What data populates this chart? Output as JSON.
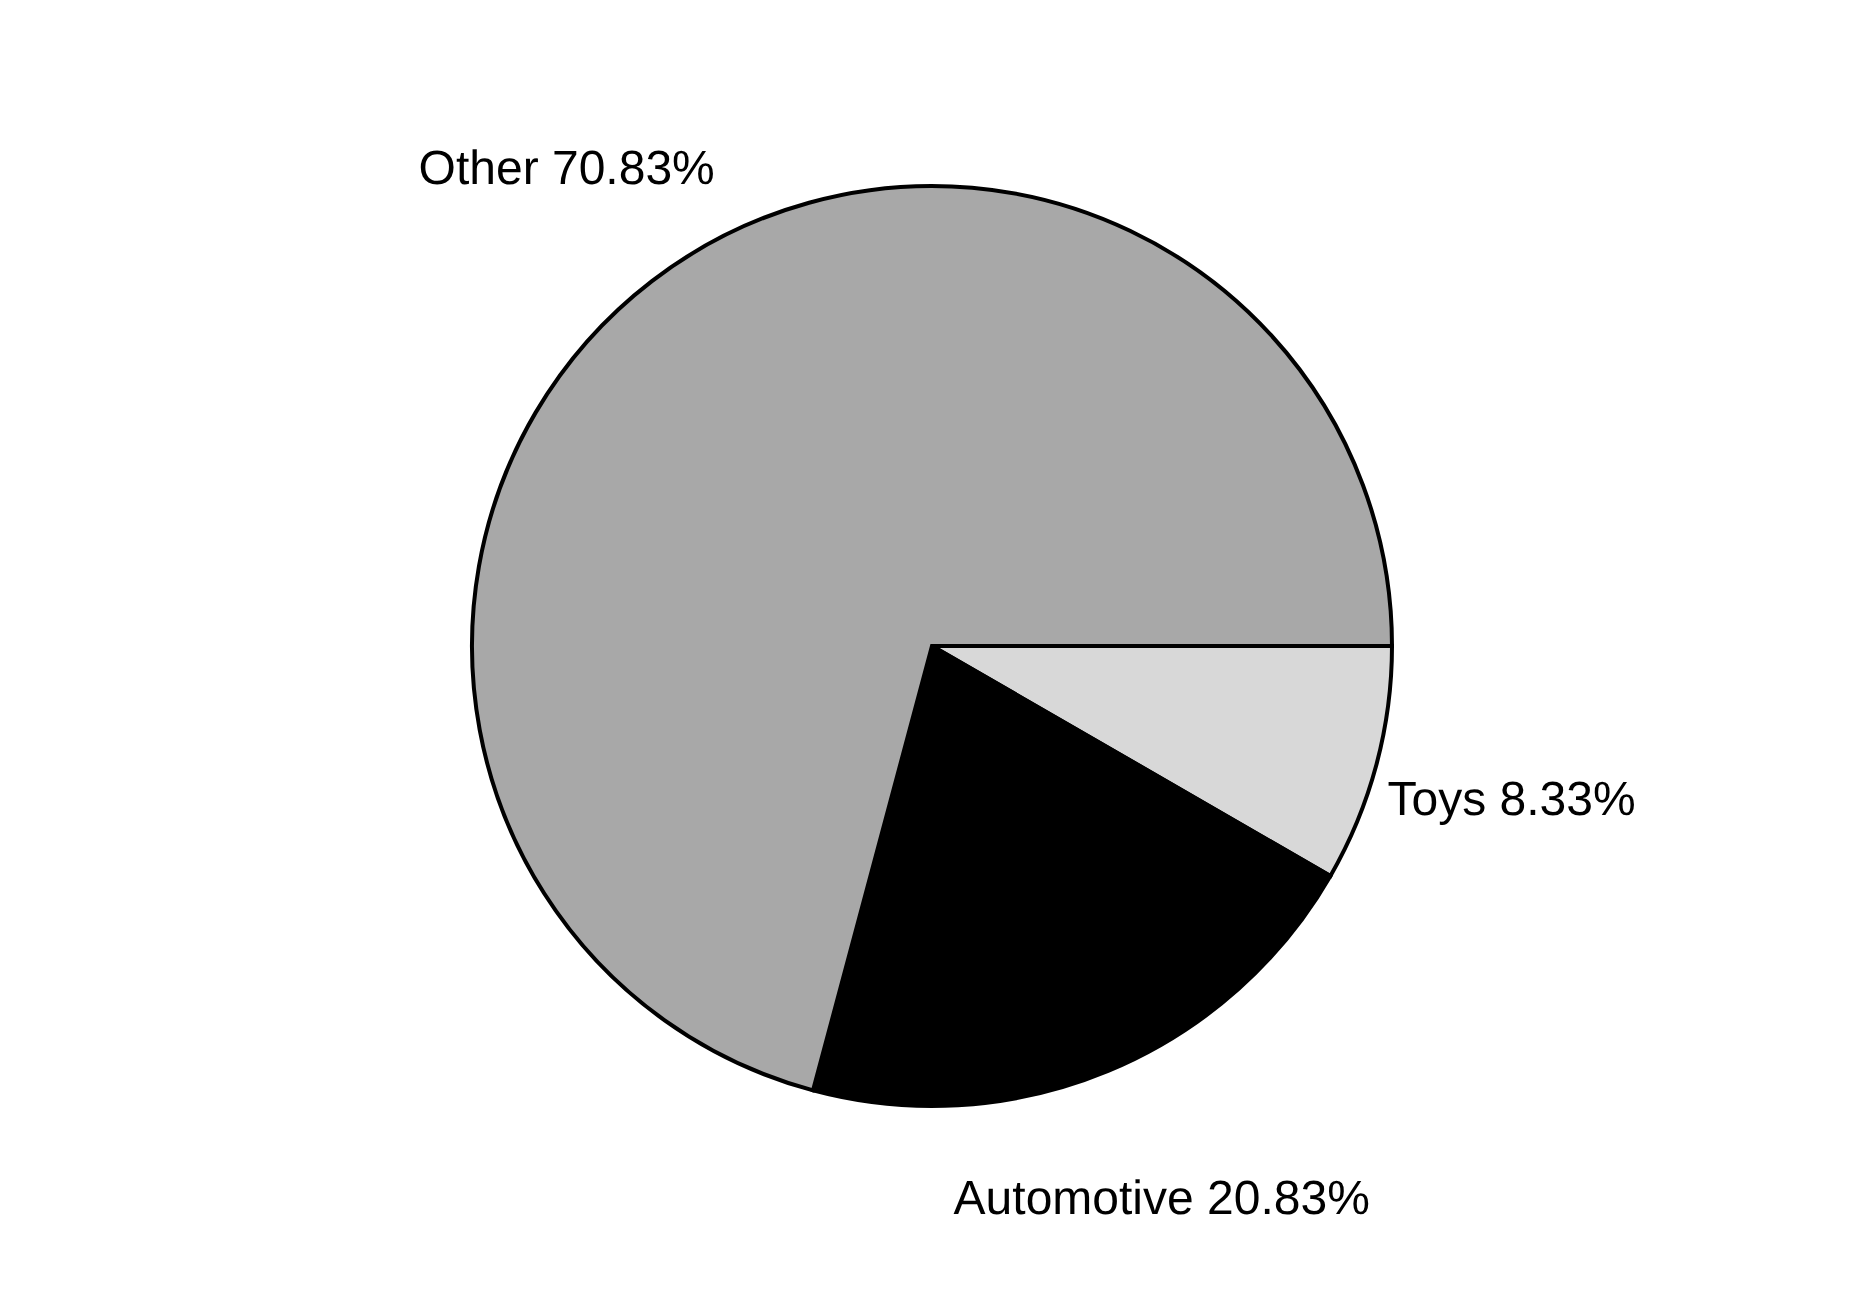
{
  "chart_data": {
    "type": "pie",
    "categories": [
      "Toys",
      "Automotive",
      "Other"
    ],
    "values": [
      8.33,
      20.83,
      70.83
    ],
    "value_labels": [
      "8.33%",
      "20.83%",
      "70.83%"
    ],
    "colors": [
      "#d8d8d8",
      "#000000",
      "#a8a8a8"
    ],
    "legend": false
  }
}
